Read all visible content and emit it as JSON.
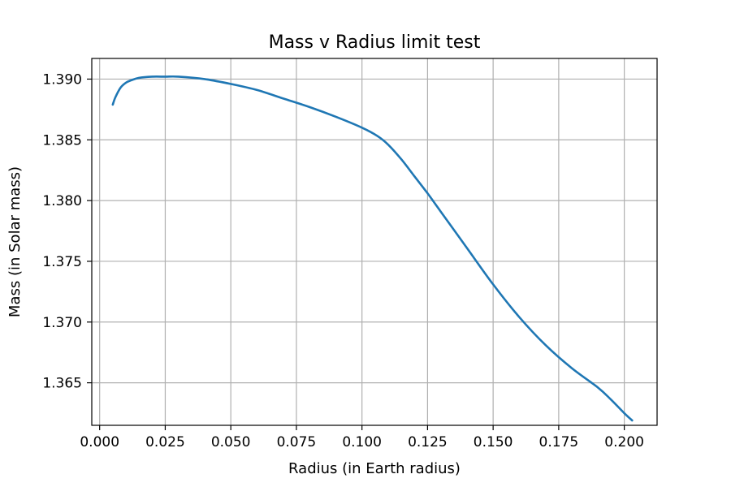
{
  "chart_data": {
    "type": "line",
    "title": "Mass v Radius limit test",
    "xlabel": "Radius (in Earth radius)",
    "ylabel": "Mass (in Solar mass)",
    "xlim": [
      -0.003,
      0.2125
    ],
    "ylim": [
      1.3615,
      1.3917
    ],
    "grid": true,
    "x_ticks": [
      0.0,
      0.025,
      0.05,
      0.075,
      0.1,
      0.125,
      0.15,
      0.175,
      0.2
    ],
    "x_tick_labels": [
      "0.000",
      "0.025",
      "0.050",
      "0.075",
      "0.100",
      "0.125",
      "0.150",
      "0.175",
      "0.200"
    ],
    "y_ticks": [
      1.365,
      1.37,
      1.375,
      1.38,
      1.385,
      1.39
    ],
    "y_tick_labels": [
      "1.365",
      "1.370",
      "1.375",
      "1.380",
      "1.385",
      "1.390"
    ],
    "series": [
      {
        "color": "#1f77b4",
        "x": [
          0.005,
          0.006,
          0.008,
          0.01,
          0.012,
          0.015,
          0.02,
          0.025,
          0.03,
          0.04,
          0.05,
          0.06,
          0.07,
          0.08,
          0.09,
          0.1,
          0.106,
          0.11,
          0.115,
          0.12,
          0.125,
          0.13,
          0.14,
          0.15,
          0.16,
          0.17,
          0.18,
          0.19,
          0.195,
          0.2,
          0.203
        ],
        "y": [
          1.3879,
          1.3885,
          1.3893,
          1.3897,
          1.3899,
          1.3901,
          1.3902,
          1.3902,
          1.3902,
          1.39,
          1.3896,
          1.3891,
          1.3884,
          1.3877,
          1.3869,
          1.386,
          1.3853,
          1.3846,
          1.3834,
          1.382,
          1.3806,
          1.3791,
          1.3761,
          1.3731,
          1.3704,
          1.3681,
          1.3662,
          1.3646,
          1.3636,
          1.3625,
          1.3619
        ]
      }
    ]
  }
}
